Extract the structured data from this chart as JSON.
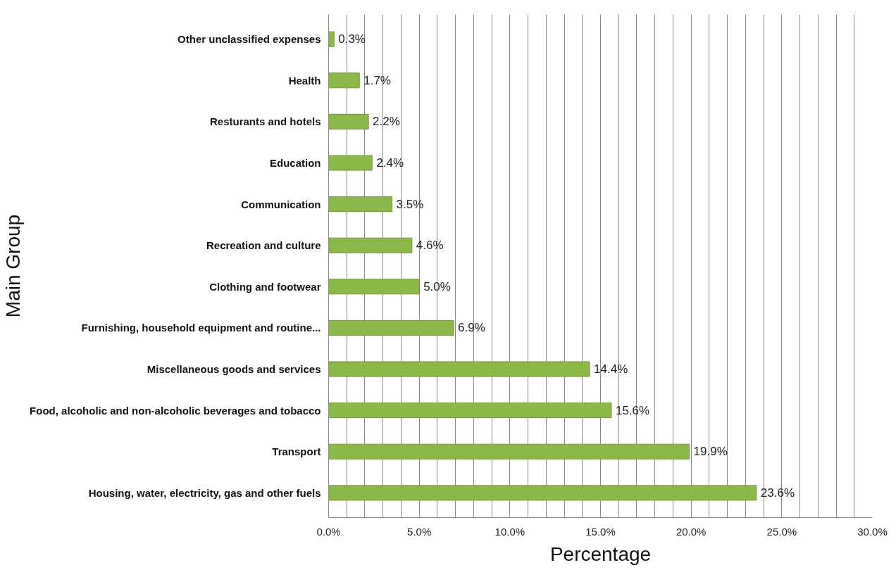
{
  "chart_data": {
    "type": "bar",
    "orientation": "horizontal",
    "xlabel": "Percentage",
    "ylabel": "Main Group",
    "categories": [
      "Other unclassified expenses",
      "Health",
      "Resturants and hotels",
      "Education",
      "Communication",
      "Recreation and culture",
      "Clothing and footwear",
      "Furnishing, household equipment and routine...",
      "Miscellaneous goods and services",
      "Food, alcoholic and non-alcoholic beverages and tobacco",
      "Transport",
      "Housing, water, electricity, gas and other fuels"
    ],
    "values": [
      0.3,
      1.7,
      2.2,
      2.4,
      3.5,
      4.6,
      5.0,
      6.9,
      14.4,
      15.6,
      19.9,
      23.6
    ],
    "value_labels": [
      "0.3%",
      "1.7%",
      "2.2%",
      "2.4%",
      "3.5%",
      "4.6%",
      "5.0%",
      "6.9%",
      "14.4%",
      "15.6%",
      "19.9%",
      "23.6%"
    ],
    "color": "#8cb84a",
    "xlim": [
      0,
      30
    ],
    "xticks": [
      {
        "value": 0,
        "label": "0.0%"
      },
      {
        "value": 1,
        "label": null
      },
      {
        "value": 2,
        "label": null
      },
      {
        "value": 3,
        "label": null
      },
      {
        "value": 4,
        "label": null
      },
      {
        "value": 5,
        "label": "5.0%"
      },
      {
        "value": 6,
        "label": null
      },
      {
        "value": 7,
        "label": null
      },
      {
        "value": 8,
        "label": null
      },
      {
        "value": 9,
        "label": null
      },
      {
        "value": 10,
        "label": "10.0%"
      },
      {
        "value": 11,
        "label": null
      },
      {
        "value": 12,
        "label": null
      },
      {
        "value": 13,
        "label": null
      },
      {
        "value": 14,
        "label": null
      },
      {
        "value": 15,
        "label": "15.0%"
      },
      {
        "value": 16,
        "label": null
      },
      {
        "value": 17,
        "label": null
      },
      {
        "value": 18,
        "label": null
      },
      {
        "value": 19,
        "label": null
      },
      {
        "value": 20,
        "label": "20.0%"
      },
      {
        "value": 21,
        "label": null
      },
      {
        "value": 22,
        "label": null
      },
      {
        "value": 23,
        "label": null
      },
      {
        "value": 24,
        "label": null
      },
      {
        "value": 25,
        "label": "25.0%"
      },
      {
        "value": 26,
        "label": null
      },
      {
        "value": 27,
        "label": null
      },
      {
        "value": 28,
        "label": null
      },
      {
        "value": 29,
        "label": null
      },
      {
        "value": 30,
        "label": "30.0%"
      }
    ],
    "grid": "x"
  }
}
